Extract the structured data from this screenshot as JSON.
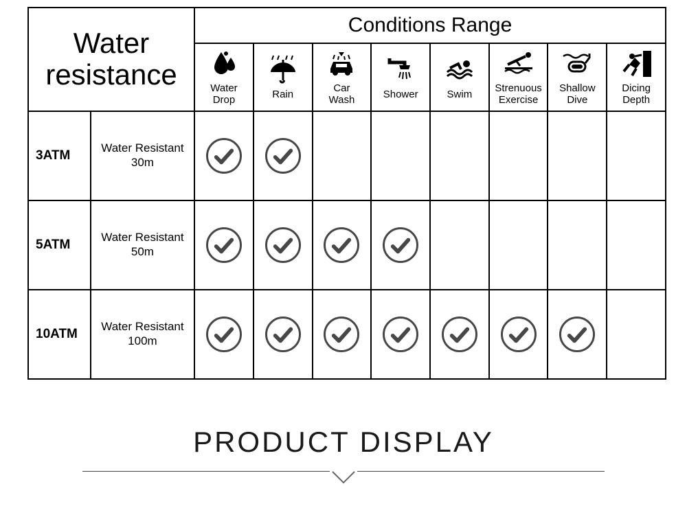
{
  "header": {
    "title_line1": "Water",
    "title_line2": "resistance",
    "conditions_title": "Conditions Range"
  },
  "conditions": [
    {
      "key": "water_drop",
      "label_line1": "Water",
      "label_line2": "Drop"
    },
    {
      "key": "rain",
      "label_line1": "Rain",
      "label_line2": ""
    },
    {
      "key": "car_wash",
      "label_line1": "Car",
      "label_line2": "Wash"
    },
    {
      "key": "shower",
      "label_line1": "Shower",
      "label_line2": ""
    },
    {
      "key": "swim",
      "label_line1": "Swim",
      "label_line2": ""
    },
    {
      "key": "strenuous",
      "label_line1": "Strenuous",
      "label_line2": "Exercise"
    },
    {
      "key": "shallow_dive",
      "label_line1": "Shallow",
      "label_line2": "Dive"
    },
    {
      "key": "dicing_depth",
      "label_line1": "Dicing",
      "label_line2": "Depth"
    }
  ],
  "rows": [
    {
      "atm": "3ATM",
      "desc_line1": "Water Resistant",
      "desc_line2": "30m",
      "checks": [
        true,
        true,
        false,
        false,
        false,
        false,
        false,
        false
      ]
    },
    {
      "atm": "5ATM",
      "desc_line1": "Water Resistant",
      "desc_line2": "50m",
      "checks": [
        true,
        true,
        true,
        true,
        false,
        false,
        false,
        false
      ]
    },
    {
      "atm": "10ATM",
      "desc_line1": "Water Resistant",
      "desc_line2": "100m",
      "checks": [
        true,
        true,
        true,
        true,
        true,
        true,
        true,
        false
      ]
    }
  ],
  "footer": {
    "title": "PRODUCT DISPLAY"
  },
  "style": {
    "border_color": "#000000",
    "check_stroke": "#474747",
    "background": "#ffffff",
    "icon_fill": "#000000"
  }
}
